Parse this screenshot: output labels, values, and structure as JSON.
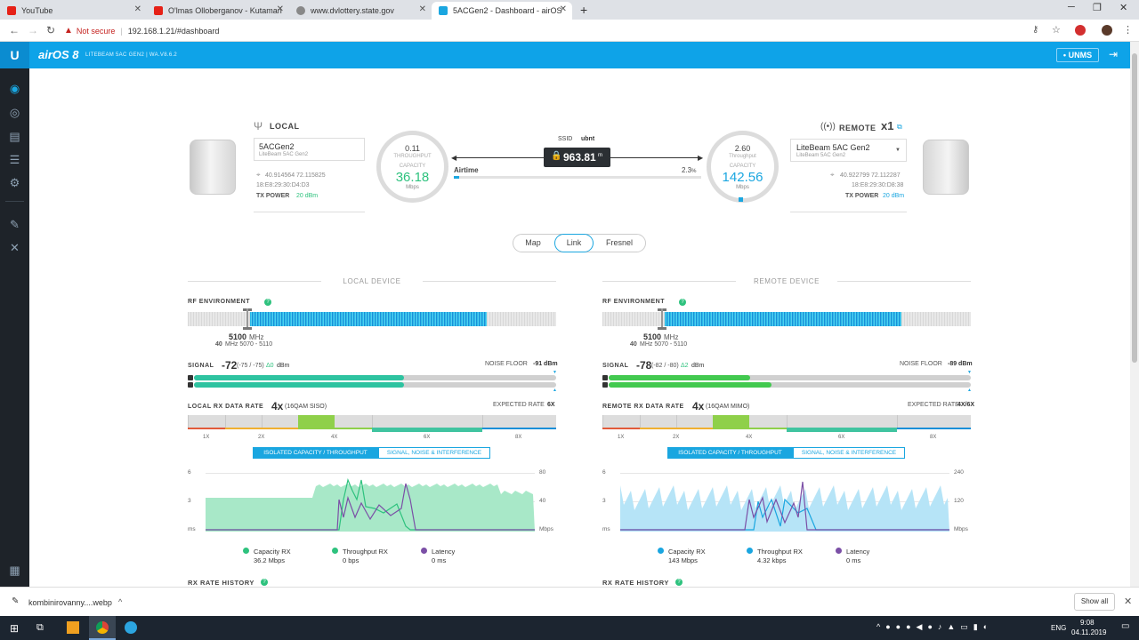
{
  "browser": {
    "tabs": [
      {
        "label": "YouTube",
        "color": "#e62117"
      },
      {
        "label": "O'lmas Olloberganov - Kutaman",
        "color": "#e62117"
      },
      {
        "label": "www.dvlottery.state.gov",
        "color": "#777777"
      },
      {
        "label": "5ACGen2 - Dashboard - airOS",
        "color": "#1aa6e0"
      }
    ],
    "not_secure": "Not secure",
    "url": "192.168.1.21/#dashboard",
    "new_tab": "+"
  },
  "header": {
    "logo": "airOS 8",
    "device_info": "LITEBEAM 5AC GEN2 | WA.V8.6.2",
    "unms": "UNMS"
  },
  "local": {
    "title": "LOCAL",
    "name": "5ACGen2",
    "model": "LiteBeam 5AC Gen2",
    "coords": "40.914564 72.115825",
    "mac": "18:E8:29:30:D4:D3",
    "tx_power_label": "TX POWER",
    "tx_power": "20 dBm",
    "gauge_top": "0.11",
    "gauge_caption1": "THROUGHPUT",
    "gauge_caption2": "CAPACITY",
    "gauge_value": "36.18",
    "gauge_unit": "Mbps"
  },
  "remote": {
    "title": "REMOTE",
    "count": "x1",
    "name": "LiteBeam 5AC Gen2",
    "model": "LiteBeam 5AC Gen2",
    "coords": "40.922799 72.112287",
    "mac": "18:E8:29:30:D8:38",
    "tx_power_label": "TX POWER",
    "tx_power": "20 dBm",
    "gauge_top": "2.60",
    "gauge_caption1": "Throughput",
    "gauge_caption2": "CAPACITY",
    "gauge_value": "142.56",
    "gauge_unit": "Mbps"
  },
  "link": {
    "ssid_label": "SSID",
    "ssid": "ubnt",
    "distance": "963.81",
    "distance_unit": "m",
    "airtime_label": "Airtime",
    "airtime": "2.3",
    "airtime_unit": "%",
    "airtime_fraction": 0.023
  },
  "view_tabs": [
    "Map",
    "Link",
    "Fresnel"
  ],
  "panels": [
    {
      "section": "LOCAL DEVICE",
      "rf_label": "RF ENVIRONMENT",
      "freq": "5100",
      "freq_unit": "MHz",
      "width": "40",
      "range": "MHz 5070 - 5110",
      "signal_label": "SIGNAL",
      "signal": "-72",
      "signal_detail": "(-75 / -75)",
      "signal_delta": "Δ0",
      "signal_unit": "dBm",
      "noise_label": "NOISE FLOOR",
      "noise": "-91 dBm",
      "signal_fraction": 0.58,
      "rx_label": "LOCAL RX DATA RATE",
      "rx_rate": "4x",
      "rx_mode": "(16QAM SISO)",
      "expected_label": "EXPECTED RATE",
      "expected": "6X",
      "rate_ticks": [
        "1X",
        "2X",
        "4X",
        "6X",
        "8X"
      ],
      "tab_active": "ISOLATED CAPACITY / THROUGHPUT",
      "tab_inactive": "SIGNAL, NOISE & INTERFERENCE",
      "y_left": [
        "6",
        "3",
        "ms"
      ],
      "y_right": [
        "80",
        "40",
        "Mbps"
      ],
      "legend": [
        {
          "label": "Capacity RX",
          "value": "36.2 Mbps",
          "color": "#2ec27e"
        },
        {
          "label": "Throughput RX",
          "value": "0 bps",
          "color": "#2ec27e"
        },
        {
          "label": "Latency",
          "value": "0 ms",
          "color": "#7b4fa6"
        }
      ],
      "history": "RX RATE HISTORY",
      "accent": "#2ec27e",
      "fill": "#a8e8c8"
    },
    {
      "section": "REMOTE DEVICE",
      "rf_label": "RF ENVIRONMENT",
      "freq": "5100",
      "freq_unit": "MHz",
      "width": "40",
      "range": "MHz 5070 - 5110",
      "signal_label": "SIGNAL",
      "signal": "-78",
      "signal_detail": "(-82 / -80)",
      "signal_delta": "Δ2",
      "signal_unit": "dBm",
      "noise_label": "NOISE FLOOR",
      "noise": "-89 dBm",
      "signal_fraction": 0.45,
      "rx_label": "REMOTE RX DATA RATE",
      "rx_rate": "4x",
      "rx_mode": "(16QAM MIMO)",
      "expected_label": "EXPECTED RATE",
      "expected": "4X/6X",
      "rate_ticks": [
        "1X",
        "2X",
        "4X",
        "6X",
        "8X"
      ],
      "tab_active": "ISOLATED CAPACITY / THROUGHPUT",
      "tab_inactive": "SIGNAL, NOISE & INTERFERENCE",
      "y_left": [
        "6",
        "3",
        "ms"
      ],
      "y_right": [
        "240",
        "120",
        "Mbps"
      ],
      "legend": [
        {
          "label": "Capacity RX",
          "value": "143 Mbps",
          "color": "#1aa6e0"
        },
        {
          "label": "Throughput RX",
          "value": "4.32 kbps",
          "color": "#1aa6e0"
        },
        {
          "label": "Latency",
          "value": "0 ms",
          "color": "#7b4fa6"
        }
      ],
      "history": "RX RATE HISTORY",
      "accent": "#1aa6e0",
      "fill": "#b6e4f7"
    }
  ],
  "download": {
    "file": "kombinirovanny....webp",
    "show_all": "Show all"
  },
  "taskbar": {
    "lang": "ENG",
    "time": "9:08",
    "date": "04.11.2019"
  }
}
